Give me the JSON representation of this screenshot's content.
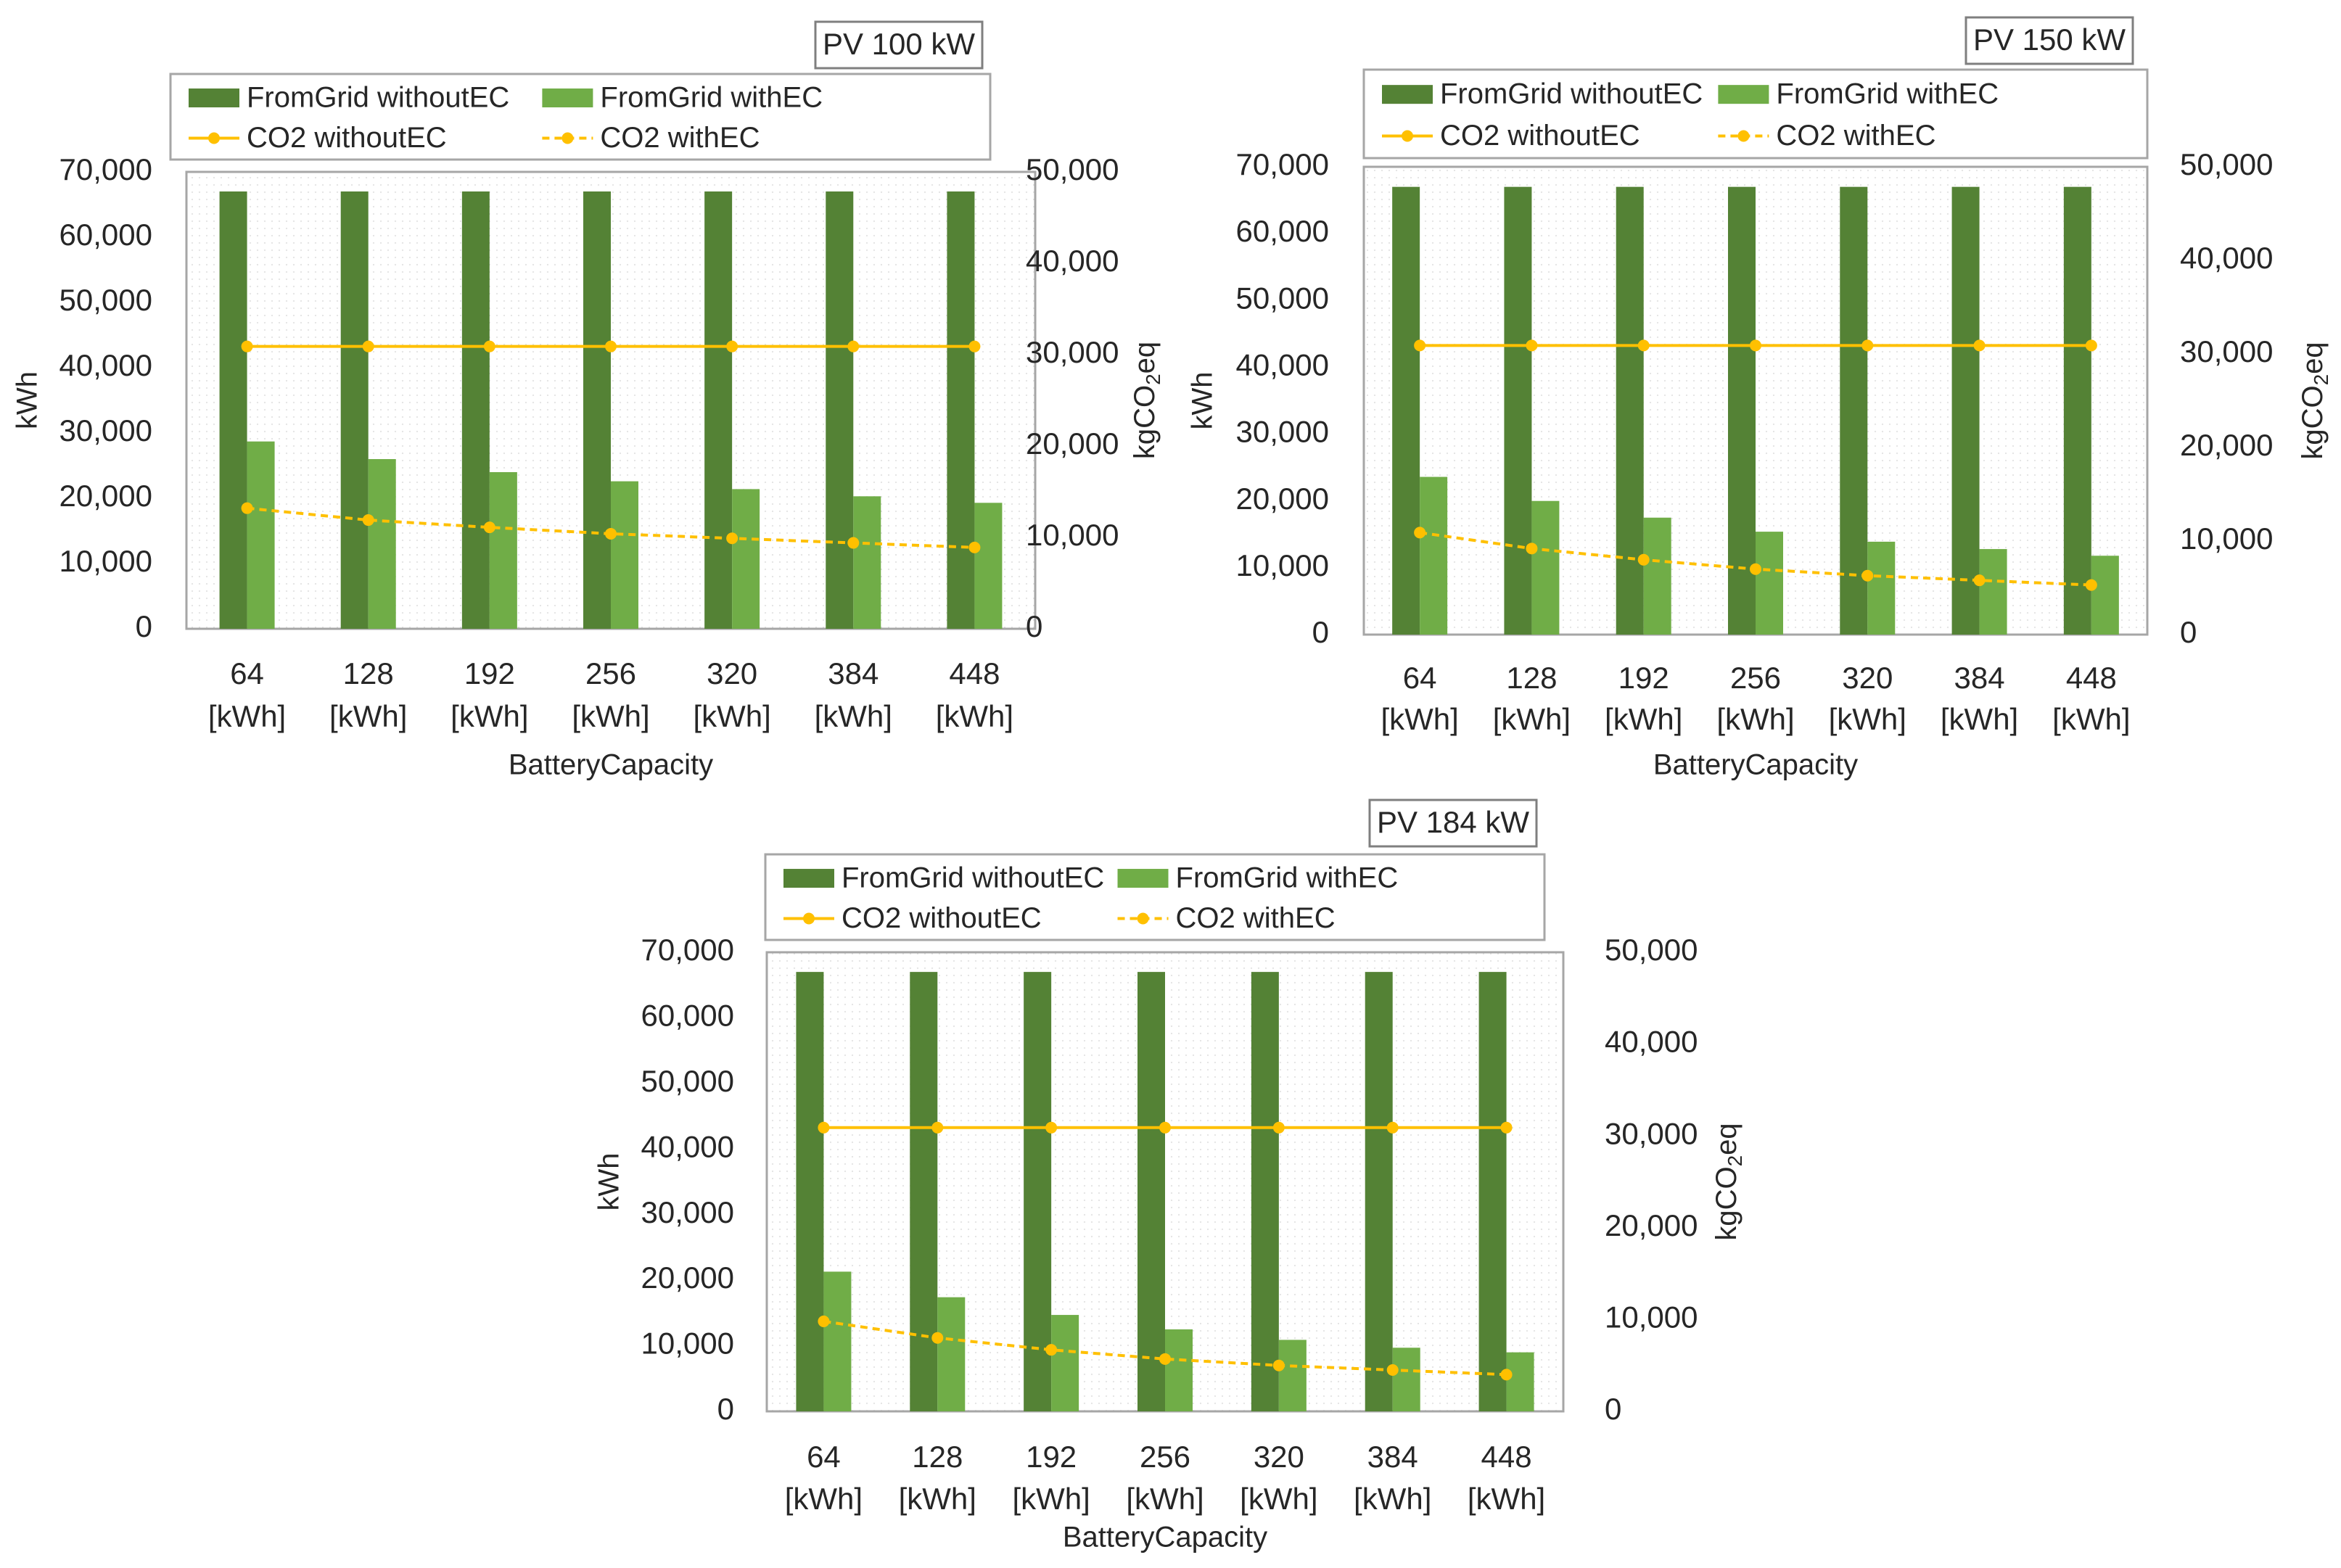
{
  "chart_data": [
    {
      "type": "bar",
      "title": "PV 100 kW",
      "xlabel": "BatteryCapacity",
      "ylabel": "kWh",
      "y2label": "kgCO2eq",
      "y2label_main": "kgCO",
      "y2label_sub": "2",
      "y2label_tail": "eq",
      "ylim": [
        0,
        70000
      ],
      "y2lim": [
        0,
        50000
      ],
      "yticks": [
        "0",
        "10,000",
        "20,000",
        "30,000",
        "40,000",
        "50,000",
        "60,000",
        "70,000"
      ],
      "y2ticks": [
        "0",
        "10,000",
        "20,000",
        "30,000",
        "40,000",
        "50,000"
      ],
      "categories": [
        "64",
        "128",
        "192",
        "256",
        "320",
        "384",
        "448"
      ],
      "category_unit": "[kWh]",
      "legend_position": "top",
      "series": [
        {
          "name": "FromGrid withoutEC",
          "kind": "bar",
          "axis": "left",
          "color": "#548235",
          "values": [
            67000,
            67000,
            67000,
            67000,
            67000,
            67000,
            67000
          ]
        },
        {
          "name": "FromGrid withEC",
          "kind": "bar",
          "axis": "left",
          "color": "#70ad47",
          "values": [
            28700,
            26000,
            24000,
            22600,
            21400,
            20300,
            19300
          ]
        },
        {
          "name": "CO2 withoutEC",
          "kind": "line",
          "axis": "right",
          "color": "#ffc000",
          "dashed": false,
          "values": [
            30900,
            30900,
            30900,
            30900,
            30900,
            30900,
            30900
          ]
        },
        {
          "name": "CO2 withEC",
          "kind": "line",
          "axis": "right",
          "color": "#ffc000",
          "dashed": true,
          "values": [
            13200,
            11900,
            11100,
            10400,
            9900,
            9400,
            8900
          ]
        }
      ]
    },
    {
      "type": "bar",
      "title": "PV 150 kW",
      "xlabel": "BatteryCapacity",
      "ylabel": "kWh",
      "y2label": "kgCO2eq",
      "y2label_main": "kgCO",
      "y2label_sub": "2",
      "y2label_tail": "eq",
      "ylim": [
        0,
        70000
      ],
      "y2lim": [
        0,
        50000
      ],
      "yticks": [
        "0",
        "10,000",
        "20,000",
        "30,000",
        "40,000",
        "50,000",
        "60,000",
        "70,000"
      ],
      "y2ticks": [
        "0",
        "10,000",
        "20,000",
        "30,000",
        "40,000",
        "50,000"
      ],
      "categories": [
        "64",
        "128",
        "192",
        "256",
        "320",
        "384",
        "448"
      ],
      "category_unit": "[kWh]",
      "legend_position": "top",
      "series": [
        {
          "name": "FromGrid withoutEC",
          "kind": "bar",
          "axis": "left",
          "color": "#548235",
          "values": [
            67000,
            67000,
            67000,
            67000,
            67000,
            67000,
            67000
          ]
        },
        {
          "name": "FromGrid withEC",
          "kind": "bar",
          "axis": "left",
          "color": "#70ad47",
          "values": [
            23600,
            20000,
            17500,
            15400,
            13900,
            12800,
            11800
          ]
        },
        {
          "name": "CO2 withoutEC",
          "kind": "line",
          "axis": "right",
          "color": "#ffc000",
          "dashed": false,
          "values": [
            30900,
            30900,
            30900,
            30900,
            30900,
            30900,
            30900
          ]
        },
        {
          "name": "CO2 withEC",
          "kind": "line",
          "axis": "right",
          "color": "#ffc000",
          "dashed": true,
          "values": [
            10900,
            9200,
            8000,
            7000,
            6300,
            5800,
            5300
          ]
        }
      ]
    },
    {
      "type": "bar",
      "title": "PV 184 kW",
      "xlabel": "BatteryCapacity",
      "ylabel": "kWh",
      "y2label": "kgCO2eq",
      "y2label_main": "kgCO",
      "y2label_sub": "2",
      "y2label_tail": "eq",
      "ylim": [
        0,
        70000
      ],
      "y2lim": [
        0,
        50000
      ],
      "yticks": [
        "0",
        "10,000",
        "20,000",
        "30,000",
        "40,000",
        "50,000",
        "60,000",
        "70,000"
      ],
      "y2ticks": [
        "0",
        "10,000",
        "20,000",
        "30,000",
        "40,000",
        "50,000"
      ],
      "categories": [
        "64",
        "128",
        "192",
        "256",
        "320",
        "384",
        "448"
      ],
      "category_unit": "[kWh]",
      "legend_position": "top",
      "series": [
        {
          "name": "FromGrid withoutEC",
          "kind": "bar",
          "axis": "left",
          "color": "#548235",
          "values": [
            67000,
            67000,
            67000,
            67000,
            67000,
            67000,
            67000
          ]
        },
        {
          "name": "FromGrid withEC",
          "kind": "bar",
          "axis": "left",
          "color": "#70ad47",
          "values": [
            21300,
            17400,
            14700,
            12500,
            10900,
            9700,
            9000
          ]
        },
        {
          "name": "CO2 withoutEC",
          "kind": "line",
          "axis": "right",
          "color": "#ffc000",
          "dashed": false,
          "values": [
            30900,
            30900,
            30900,
            30900,
            30900,
            30900,
            30900
          ]
        },
        {
          "name": "CO2 withEC",
          "kind": "line",
          "axis": "right",
          "color": "#ffc000",
          "dashed": true,
          "values": [
            9800,
            8000,
            6700,
            5700,
            5000,
            4500,
            4000
          ]
        }
      ]
    }
  ]
}
